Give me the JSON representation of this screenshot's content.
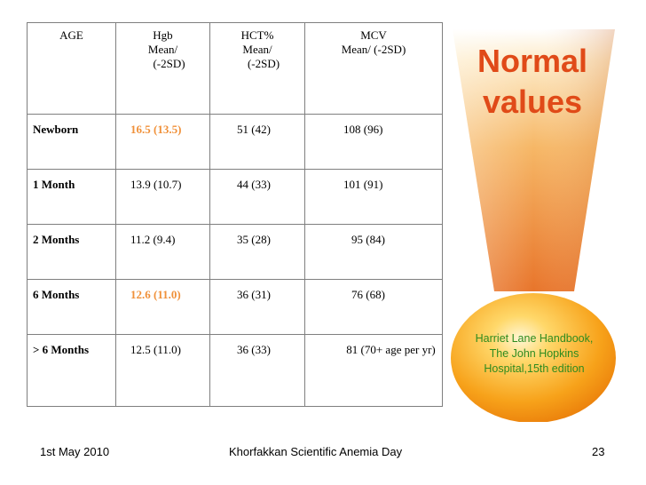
{
  "table": {
    "headers": {
      "age": "AGE",
      "hgb": [
        "Hgb",
        "Mean/",
        "(-2SD)"
      ],
      "hct": [
        "HCT%",
        "Mean/",
        "(-2SD)"
      ],
      "mcv": [
        "MCV",
        "Mean/ (-2SD)"
      ]
    },
    "rows": [
      {
        "age": "Newborn",
        "hgb": "16.5 (13.5)",
        "hct": "51 (42)",
        "mcv": "108 (96)"
      },
      {
        "age": "1 Month",
        "hgb": "13.9 (10.7)",
        "hct": "44 (33)",
        "mcv": "101 (91)"
      },
      {
        "age": "2 Months",
        "hgb": "11.2 (9.4)",
        "hct": "35 (28)",
        "mcv": "95 (84)"
      },
      {
        "age": "6 Months",
        "hgb": "12.6 (11.0)",
        "hct": "36 (31)",
        "mcv": "76 (68)"
      },
      {
        "age": "> 6 Months",
        "hgb": "12.5 (11.0)",
        "hct": "36 (33)",
        "mcv": "81 (70+ age per yr)"
      }
    ],
    "highlight_color": "#f0913a"
  },
  "graphic": {
    "title_line1": "Normal",
    "title_line2": "values",
    "title_color": "#e04a18",
    "source": [
      "Harriet Lane Handbook,",
      "The John Hopkins",
      "Hospital,15th edition"
    ],
    "source_color": "#2e8b1f"
  },
  "footer": {
    "date": "1st May 2010",
    "center": "Khorfakkan Scientific Anemia Day",
    "page": "23"
  }
}
